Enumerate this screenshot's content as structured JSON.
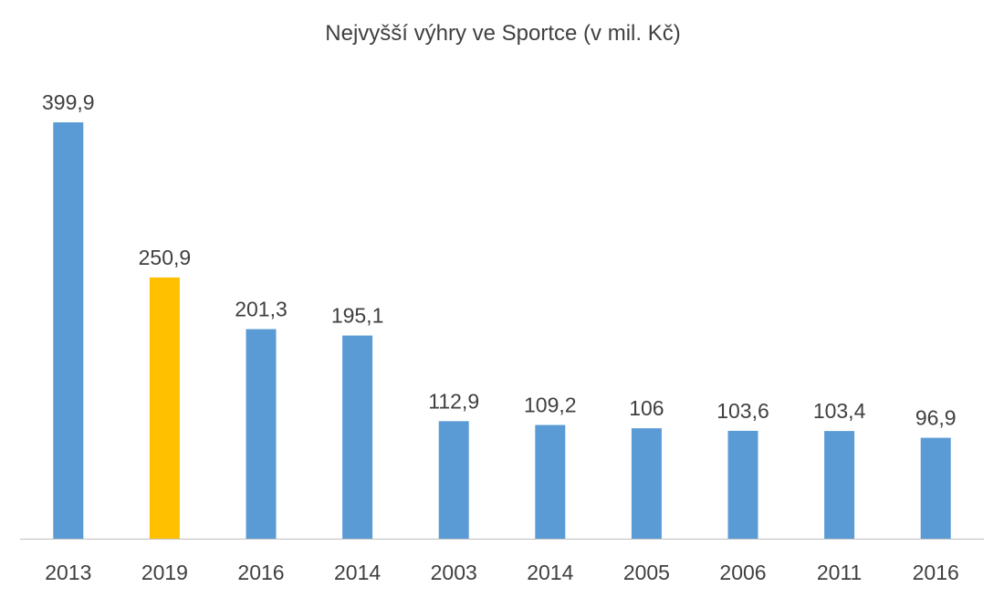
{
  "chart_data": {
    "type": "bar",
    "title": "Nejvyšší výhry ve Sportce (v mil. Kč)",
    "xlabel": "",
    "ylabel": "",
    "categories": [
      "2013",
      "2019",
      "2016",
      "2014",
      "2003",
      "2014",
      "2005",
      "2006",
      "2011",
      "2016"
    ],
    "values": [
      399.9,
      250.9,
      201.3,
      195.1,
      112.9,
      109.2,
      106,
      103.6,
      103.4,
      96.9
    ],
    "value_labels": [
      "399,9",
      "250,9",
      "201,3",
      "195,1",
      "112,9",
      "109,2",
      "106",
      "103,6",
      "103,4",
      "96,9"
    ],
    "ylim": [
      0,
      399.9
    ],
    "grid": false,
    "legend": "none",
    "colors": {
      "default": "#5B9BD5",
      "highlight": "#FFC000",
      "highlight_index": 1,
      "axis": "#BFBFBF"
    }
  }
}
